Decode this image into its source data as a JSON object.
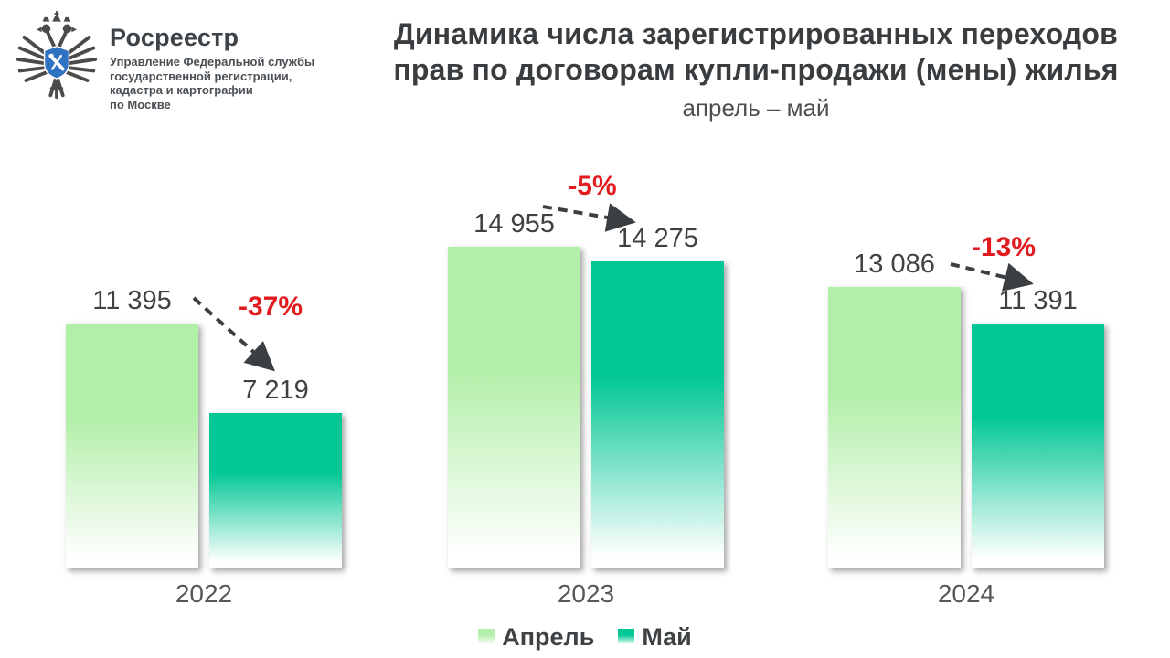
{
  "logo": {
    "brand": "Росреестр",
    "org_lines": [
      "Управление Федеральной службы",
      "государственной регистрации,",
      "кадастра и картографии",
      "по Москве"
    ]
  },
  "header": {
    "title_lines": [
      "Динамика числа зарегистрированных переходов",
      "прав по договорам купли-продажи (мены) жилья"
    ],
    "subtitle": "апрель – май"
  },
  "chart_data": {
    "type": "bar",
    "title": "Динамика числа зарегистрированных переходов прав по договорам купли-продажи (мены) жилья",
    "subtitle": "апрель – май",
    "categories": [
      "2022",
      "2023",
      "2024"
    ],
    "series": [
      {
        "name": "Апрель",
        "color": "#b2efa8",
        "values": [
          11395,
          14955,
          13086
        ]
      },
      {
        "name": "Май",
        "color": "#03c795",
        "values": [
          7219,
          14275,
          11391
        ]
      }
    ],
    "changes_pct": [
      -37,
      -5,
      -13
    ],
    "change_color": "#e11b1e",
    "value_label_color": "#3f4245",
    "arrow_color": "#3c3f41",
    "ylim": [
      0,
      15500
    ],
    "grid": false,
    "axes_visible": false,
    "legend_position": "bottom",
    "value_label_format": "space-thousands"
  }
}
